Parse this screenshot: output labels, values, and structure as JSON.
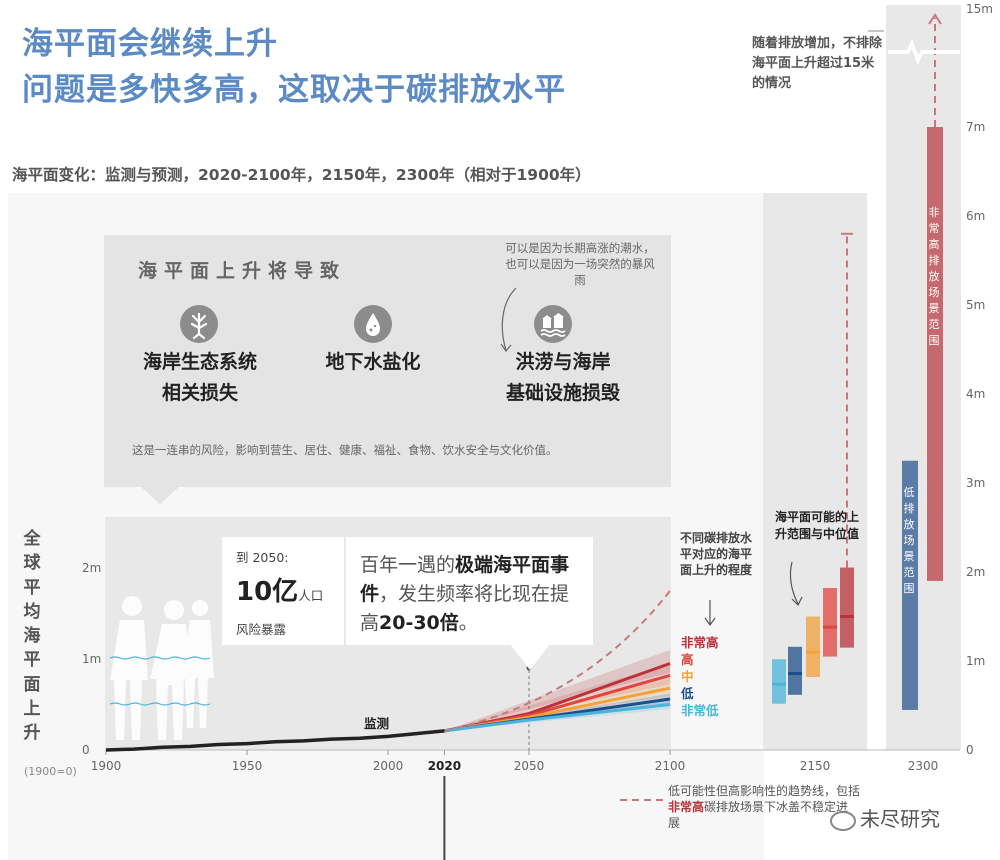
{
  "header": {
    "title_line1": "海平面会继续上升",
    "title_line2": "问题是多快多高，这取决于碳排放水平",
    "subtitle": "海平面变化：监测与预测，2020-2100年，2150年，2300年（相对于1900年）"
  },
  "consequences": {
    "title": "海平面上升将导致",
    "items": [
      {
        "label_line1": "海岸生态系统",
        "label_line2": "相关损失",
        "icon": "tree-roots-icon"
      },
      {
        "label_line1": "地下水盐化",
        "label_line2": "",
        "icon": "water-drop-icon"
      },
      {
        "label_line1": "洪涝与海岸",
        "label_line2": "基础设施损毁",
        "icon": "flood-houses-icon"
      }
    ],
    "flood_note": "可以是因为长期高涨的潮水，也可以是因为一场突然的暴风雨",
    "footer": "这是一连串的风险，影响到营生、居住、健康、福祉、食物、饮水安全与文化价值。"
  },
  "callouts": {
    "exposure_year": "到 2050:",
    "exposure_value": "10亿",
    "exposure_unit": "人口",
    "exposure_label": "风险暴露",
    "extreme_pre": "百年一遇的",
    "extreme_bold": "极端海平面事件",
    "extreme_mid": "，发生频率将比现在提高",
    "extreme_num": "20-30倍",
    "extreme_end": "。"
  },
  "yaxis": {
    "label_chars": [
      "全",
      "球",
      "平",
      "均",
      "海",
      "平",
      "面",
      "上",
      "升"
    ],
    "baseline_note": "(1900=0)"
  },
  "annotations": {
    "observed_label": "监测",
    "scenario_note": "不同碳排放水平对应的海平面上升的程度",
    "range_note": "海平面可能的上升范围与中位值",
    "top_note": "随着排放增加，不排除海平面上升超过15米的情况",
    "dashed_legend_pre": "低可能性但高影响性的趋势线，包括",
    "dashed_legend_bold": "非常高",
    "dashed_legend_post": "碳排放场景下冰盖不稳定进展",
    "bar_very_high": "非常高排放场景范围",
    "bar_low": "低排放场景范围"
  },
  "watermark": "未尽研究",
  "colors": {
    "very_high": "#b8323a",
    "high": "#e2453f",
    "medium": "#f3a13a",
    "low": "#1f4f8a",
    "very_low": "#49b4dc",
    "observed": "#222222",
    "title": "#5b8ac4"
  },
  "chart_data": {
    "type": "line",
    "x_ticks": [
      "1900",
      "1950",
      "2000",
      "2020",
      "2050",
      "2100"
    ],
    "main_y_ticks": [
      "0",
      "1m",
      "2m"
    ],
    "right_y_ticks": [
      "0",
      "1m",
      "2m",
      "3m",
      "4m",
      "5m",
      "6m",
      "7m",
      "15m"
    ],
    "xlim": [
      1900,
      2100
    ],
    "ylim": [
      0,
      2.0
    ],
    "observed": {
      "name": "监测",
      "x": [
        1900,
        1910,
        1920,
        1930,
        1940,
        1950,
        1960,
        1970,
        1980,
        1990,
        2000,
        2010,
        2020
      ],
      "y": [
        0,
        0.01,
        0.03,
        0.04,
        0.06,
        0.07,
        0.09,
        0.1,
        0.12,
        0.13,
        0.15,
        0.18,
        0.21
      ]
    },
    "scenarios": [
      {
        "name": "非常高",
        "color_key": "very_high",
        "x": [
          2020,
          2050,
          2100
        ],
        "y": [
          0.21,
          0.4,
          0.95
        ],
        "band": [
          0.85,
          1.1
        ]
      },
      {
        "name": "高",
        "color_key": "high",
        "x": [
          2020,
          2050,
          2100
        ],
        "y": [
          0.21,
          0.38,
          0.82
        ],
        "band": [
          0.72,
          0.95
        ]
      },
      {
        "name": "中",
        "color_key": "medium",
        "x": [
          2020,
          2050,
          2100
        ],
        "y": [
          0.21,
          0.36,
          0.68
        ],
        "band": [
          0.6,
          0.78
        ]
      },
      {
        "name": "低",
        "color_key": "low",
        "x": [
          2020,
          2050,
          2100
        ],
        "y": [
          0.21,
          0.34,
          0.56
        ],
        "band": [
          0.5,
          0.62
        ]
      },
      {
        "name": "非常低",
        "color_key": "very_low",
        "x": [
          2020,
          2050,
          2100
        ],
        "y": [
          0.21,
          0.33,
          0.5
        ],
        "band": [
          0.45,
          0.55
        ]
      }
    ],
    "low_likelihood": {
      "x": [
        2020,
        2050,
        2075,
        2100
      ],
      "y": [
        0.21,
        0.55,
        1.05,
        1.75
      ]
    },
    "range_2150": [
      {
        "scenario": "非常低",
        "color_key": "very_low",
        "low": 0.52,
        "median": 0.74,
        "high": 1.02
      },
      {
        "scenario": "低",
        "color_key": "low",
        "low": 0.62,
        "median": 0.86,
        "high": 1.16
      },
      {
        "scenario": "中",
        "color_key": "medium",
        "low": 0.82,
        "median": 1.1,
        "high": 1.5
      },
      {
        "scenario": "高",
        "color_key": "high",
        "low": 1.05,
        "median": 1.38,
        "high": 1.82
      },
      {
        "scenario": "非常高",
        "color_key": "very_high",
        "low": 1.15,
        "median": 1.5,
        "high": 2.05
      }
    ],
    "low_likelihood_2150": 5.8,
    "range_2300": [
      {
        "scenario": "低",
        "color_key": "low",
        "low": 0.45,
        "high": 3.25
      },
      {
        "scenario": "非常高",
        "color_key": "very_high",
        "low": 1.9,
        "high": 7.0
      }
    ],
    "low_likelihood_2300": 15
  }
}
